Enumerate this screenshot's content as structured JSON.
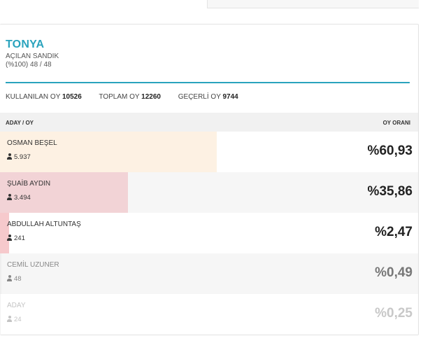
{
  "header": {
    "city": "TONYA",
    "opened_label": "AÇILAN SANDIK",
    "opened_value": "(%100) 48 / 48"
  },
  "stats": {
    "used_label": "KULLANILAN OY",
    "used_value": "10526",
    "total_label": "TOPLAM OY",
    "total_value": "12260",
    "valid_label": "GEÇERLİ OY",
    "valid_value": "9744"
  },
  "table": {
    "left_header": "ADAY / OY",
    "right_header": "OY ORANI"
  },
  "accent_color": "#2aa3bd",
  "candidates": [
    {
      "name": "OSMAN BEŞEL",
      "votes": "5.937",
      "pct": "%60,93",
      "share": 60.93,
      "bar_color": "#fdf1e3",
      "row_bg": "#ffffff",
      "text_color": "#333333",
      "pct_color": "#222222"
    },
    {
      "name": "ŞUAİB AYDIN",
      "votes": "3.494",
      "pct": "%35,86",
      "share": 35.86,
      "bar_color": "#f2d3d6",
      "row_bg": "#f6f6f6",
      "text_color": "#333333",
      "pct_color": "#222222"
    },
    {
      "name": "ABDULLAH ALTUNTAŞ",
      "votes": "241",
      "pct": "%2,47",
      "share": 2.47,
      "bar_color": "#f6c9cc",
      "row_bg": "#ffffff",
      "text_color": "#333333",
      "pct_color": "#222222"
    },
    {
      "name": "CEMİL UZUNER",
      "votes": "48",
      "pct": "%0,49",
      "share": 0.49,
      "bar_color": "#eeeeee",
      "row_bg": "#f6f6f6",
      "text_color": "#888888",
      "pct_color": "#777777"
    },
    {
      "name": "ADAY",
      "votes": "24",
      "pct": "%0,25",
      "share": 0.25,
      "bar_color": "#f4f4f4",
      "row_bg": "#ffffff",
      "text_color": "#c4c4c4",
      "pct_color": "#c8c8c8"
    }
  ]
}
